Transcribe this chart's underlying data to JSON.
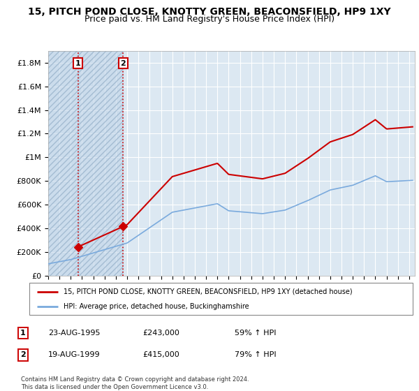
{
  "title": "15, PITCH POND CLOSE, KNOTTY GREEN, BEACONSFIELD, HP9 1XY",
  "subtitle": "Price paid vs. HM Land Registry's House Price Index (HPI)",
  "ylim": [
    0,
    1900000
  ],
  "yticks": [
    0,
    200000,
    400000,
    600000,
    800000,
    1000000,
    1200000,
    1400000,
    1600000,
    1800000
  ],
  "ytick_labels": [
    "£0",
    "£200K",
    "£400K",
    "£600K",
    "£800K",
    "£1M",
    "£1.2M",
    "£1.4M",
    "£1.6M",
    "£1.8M"
  ],
  "sale1": {
    "date_num": 1995.645,
    "price": 243000,
    "label": "1",
    "date_str": "23-AUG-1995",
    "price_str": "£243,000",
    "hpi_str": "59% ↑ HPI"
  },
  "sale2": {
    "date_num": 1999.635,
    "price": 415000,
    "label": "2",
    "date_str": "19-AUG-1999",
    "price_str": "£415,000",
    "hpi_str": "79% ↑ HPI"
  },
  "legend_line1": "15, PITCH POND CLOSE, KNOTTY GREEN, BEACONSFIELD, HP9 1XY (detached house)",
  "legend_line2": "HPI: Average price, detached house, Buckinghamshire",
  "footnote": "Contains HM Land Registry data © Crown copyright and database right 2024.\nThis data is licensed under the Open Government Licence v3.0.",
  "line_red": "#cc0000",
  "line_blue": "#7aaadd",
  "bg_color": "#dce8f2",
  "hatch_color": "#c0d4e8",
  "grid_color": "#ffffff",
  "title_fontsize": 10,
  "subtitle_fontsize": 9,
  "xlim": [
    1993,
    2025.5
  ]
}
